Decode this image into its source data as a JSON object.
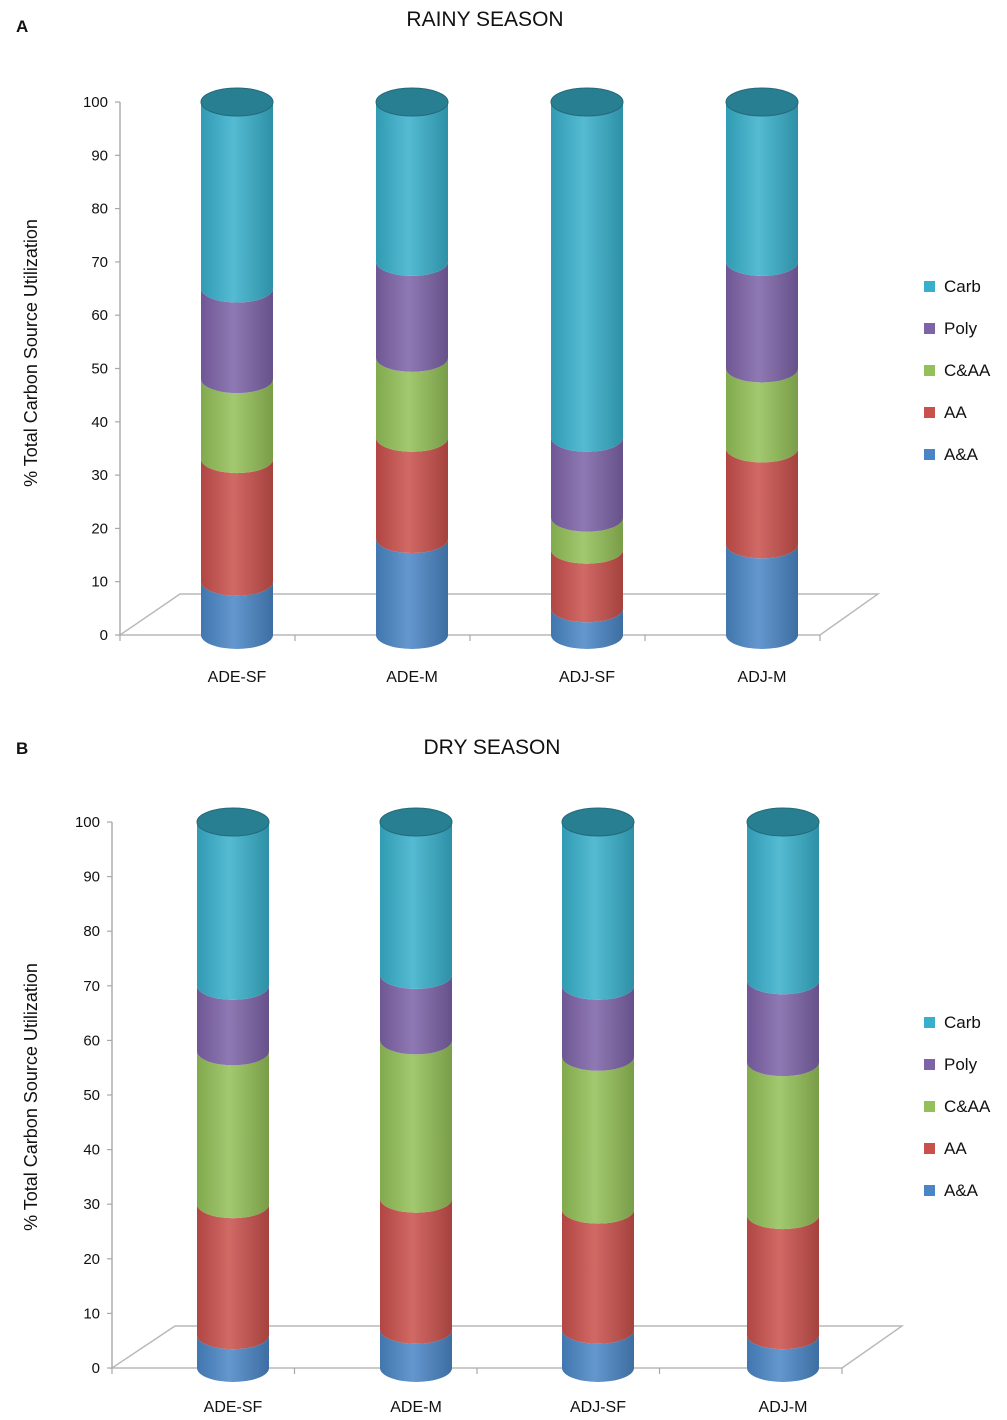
{
  "colors": {
    "A&A": "#4a86c6",
    "AA": "#c9504c",
    "C&AA": "#93c058",
    "Poly": "#7d63a8",
    "Carb": "#38b0cb"
  },
  "chart_data": [
    {
      "type": "bar",
      "stacked": true,
      "panel_letter": "A",
      "title": "RAINY SEASON",
      "xlabel": "",
      "ylabel": "% Total Carbon Source Utilization",
      "ylim": [
        0,
        100
      ],
      "yticks": [
        "0",
        "10",
        "20",
        "30",
        "40",
        "50",
        "60",
        "70",
        "80",
        "90",
        "100"
      ],
      "categories": [
        "ADE-SF",
        "ADE-M",
        "ADJ-SF",
        "ADJ-M"
      ],
      "legend_position": "right",
      "series": [
        {
          "name": "A&A",
          "values": [
            10,
            18,
            5,
            17
          ]
        },
        {
          "name": "AA",
          "values": [
            23,
            19,
            11,
            18
          ]
        },
        {
          "name": "C&AA",
          "values": [
            15,
            15,
            6,
            15
          ]
        },
        {
          "name": "Poly",
          "values": [
            17,
            18,
            15,
            20
          ]
        },
        {
          "name": "Carb",
          "values": [
            35,
            30,
            63,
            30
          ]
        }
      ]
    },
    {
      "type": "bar",
      "stacked": true,
      "panel_letter": "B",
      "title": "DRY SEASON",
      "xlabel": "",
      "ylabel": "% Total Carbon Source Utilization",
      "ylim": [
        0,
        100
      ],
      "yticks": [
        "0",
        "10",
        "20",
        "30",
        "40",
        "50",
        "60",
        "70",
        "80",
        "90",
        "100"
      ],
      "categories": [
        "ADE-SF",
        "ADE-M",
        "ADJ-SF",
        "ADJ-M"
      ],
      "legend_position": "right",
      "series": [
        {
          "name": "A&A",
          "values": [
            6,
            7,
            7,
            6
          ]
        },
        {
          "name": "AA",
          "values": [
            24,
            24,
            22,
            22
          ]
        },
        {
          "name": "C&AA",
          "values": [
            28,
            29,
            28,
            28
          ]
        },
        {
          "name": "Poly",
          "values": [
            12,
            12,
            13,
            15
          ]
        },
        {
          "name": "Carb",
          "values": [
            30,
            28,
            30,
            29
          ]
        }
      ]
    }
  ]
}
